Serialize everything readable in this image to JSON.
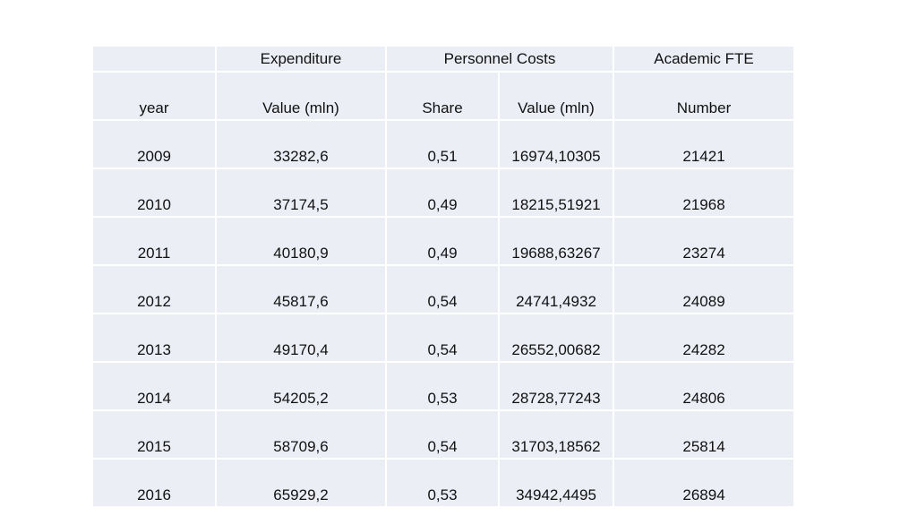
{
  "chart_data": {
    "type": "table",
    "group_headers": [
      "",
      "Expenditure",
      "Personnel Costs",
      "Academic FTE"
    ],
    "columns": [
      "year",
      "Value (mln)",
      "Share",
      "Value (mln)",
      "Number"
    ],
    "rows": [
      [
        "2009",
        "33282,6",
        "0,51",
        "16974,10305",
        "21421"
      ],
      [
        "2010",
        "37174,5",
        "0,49",
        "18215,51921",
        "21968"
      ],
      [
        "2011",
        "40180,9",
        "0,49",
        "19688,63267",
        "23274"
      ],
      [
        "2012",
        "45817,6",
        "0,54",
        "24741,4932",
        "24089"
      ],
      [
        "2013",
        "49170,4",
        "0,54",
        "26552,00682",
        "24282"
      ],
      [
        "2014",
        "54205,2",
        "0,53",
        "28728,77243",
        "24806"
      ],
      [
        "2015",
        "58709,6",
        "0,54",
        "31703,18562",
        "25814"
      ],
      [
        "2016",
        "65929,2",
        "0,53",
        "34942,4495",
        "26894"
      ]
    ]
  },
  "colors": {
    "cell_background": "#eceef6",
    "cell_border": "#ffffff",
    "text": "#111111"
  }
}
